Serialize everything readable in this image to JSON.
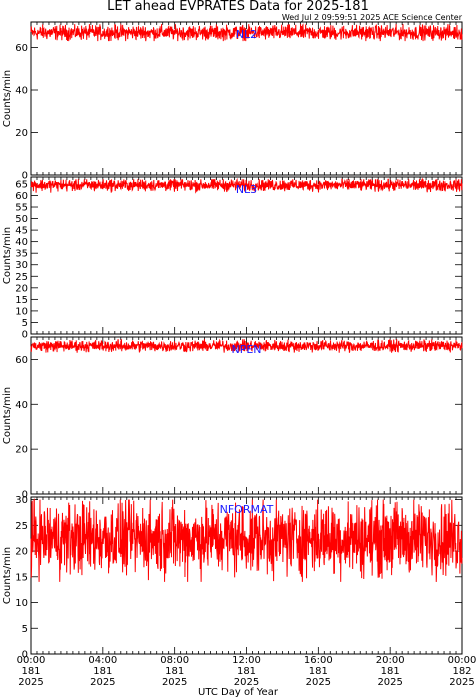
{
  "title": "LET ahead EVPRATES Data for 2025-181",
  "timestamp": "Wed Jul  2 09:59:51 2025 ACE Science Center",
  "xlabel": "UTC Day of Year",
  "colors": {
    "series": "#ff0000",
    "label": "#1a1aff",
    "axes": "#000000"
  },
  "x_ticks": [
    {
      "time": "00:00",
      "day": "181",
      "year": "2025"
    },
    {
      "time": "04:00",
      "day": "181",
      "year": "2025"
    },
    {
      "time": "08:00",
      "day": "181",
      "year": "2025"
    },
    {
      "time": "12:00",
      "day": "181",
      "year": "2025"
    },
    {
      "time": "16:00",
      "day": "181",
      "year": "2025"
    },
    {
      "time": "20:00",
      "day": "181",
      "year": "2025"
    },
    {
      "time": "00:00",
      "day": "182",
      "year": "2025"
    }
  ],
  "chart_data": [
    {
      "type": "line",
      "label": "NL2",
      "ylabel": "Counts/min",
      "ylim": [
        0,
        72
      ],
      "yticks": [
        0,
        20,
        40,
        60
      ],
      "x_hours": [
        0,
        24
      ],
      "series": [
        {
          "name": "NL2",
          "mean": 67,
          "amplitude_range": [
            63,
            71
          ],
          "samples": 1440
        }
      ]
    },
    {
      "type": "line",
      "label": "NL3",
      "ylabel": "Counts/min",
      "ylim": [
        0,
        68
      ],
      "yticks": [
        0,
        5,
        10,
        15,
        20,
        25,
        30,
        35,
        40,
        45,
        50,
        55,
        60,
        65
      ],
      "x_hours": [
        0,
        24
      ],
      "series": [
        {
          "name": "NL3",
          "mean": 64.5,
          "amplitude_range": [
            61,
            67
          ],
          "samples": 1440
        }
      ]
    },
    {
      "type": "line",
      "label": "NPEN",
      "ylabel": "Counts/min",
      "ylim": [
        0,
        70
      ],
      "yticks": [
        0,
        20,
        40,
        60
      ],
      "x_hours": [
        0,
        24
      ],
      "series": [
        {
          "name": "NPEN",
          "mean": 66,
          "amplitude_range": [
            63,
            69
          ],
          "samples": 1440
        }
      ]
    },
    {
      "type": "line",
      "label": "NFORMAT",
      "ylabel": "Counts/min",
      "ylim": [
        0,
        30.5
      ],
      "yticks": [
        0,
        5,
        10,
        15,
        20,
        25,
        30
      ],
      "x_hours": [
        0,
        24
      ],
      "series": [
        {
          "name": "NFORMAT",
          "mean": 22.5,
          "amplitude_range": [
            14,
            30
          ],
          "samples": 1440
        }
      ]
    }
  ]
}
